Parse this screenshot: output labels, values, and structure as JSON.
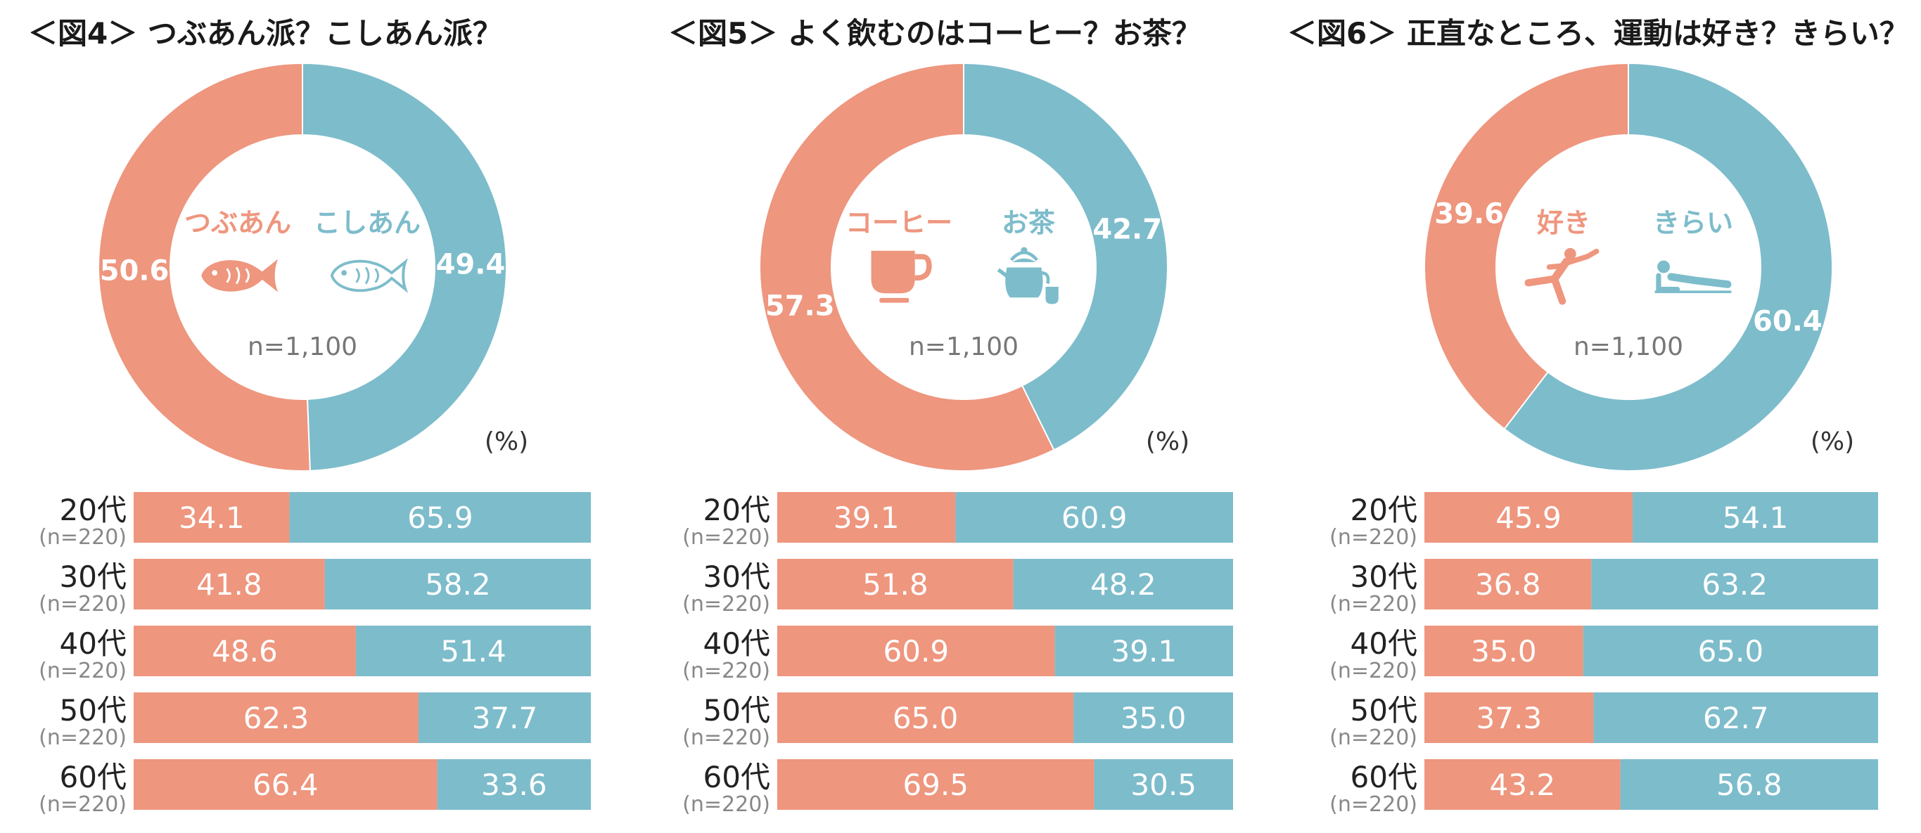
{
  "colors": {
    "left": "#ee967e",
    "right": "#7dbccb"
  },
  "chart_data": [
    {
      "type": "pie",
      "title": "＜図4＞ つぶあん派？こしあん派？",
      "sample": "n=1,100",
      "unit": "(%)",
      "categories": [
        "つぶあん",
        "こしあん"
      ],
      "icons": [
        "taiyaki-filled-icon",
        "taiyaki-outline-icon"
      ],
      "values": [
        50.6,
        49.4
      ],
      "value_labels": [
        "50.6",
        "49.4"
      ],
      "breakdown": {
        "type": "bar",
        "stacked": true,
        "categories": [
          "20代",
          "30代",
          "40代",
          "50代",
          "60代"
        ],
        "sample_labels": [
          "(n=220)",
          "(n=220)",
          "(n=220)",
          "(n=220)",
          "(n=220)"
        ],
        "series": [
          {
            "name": "つぶあん",
            "values": [
              34.1,
              41.8,
              48.6,
              62.3,
              66.4
            ],
            "labels": [
              "34.1",
              "41.8",
              "48.6",
              "62.3",
              "66.4"
            ]
          },
          {
            "name": "こしあん",
            "values": [
              65.9,
              58.2,
              51.4,
              37.7,
              33.6
            ],
            "labels": [
              "65.9",
              "58.2",
              "51.4",
              "37.7",
              "33.6"
            ]
          }
        ]
      }
    },
    {
      "type": "pie",
      "title": "＜図5＞ よく飲むのはコーヒー？お茶？",
      "sample": "n=1,100",
      "unit": "(%)",
      "categories": [
        "コーヒー",
        "お茶"
      ],
      "icons": [
        "coffee-cup-icon",
        "teapot-icon"
      ],
      "values": [
        57.3,
        42.7
      ],
      "value_labels": [
        "57.3",
        "42.7"
      ],
      "breakdown": {
        "type": "bar",
        "stacked": true,
        "categories": [
          "20代",
          "30代",
          "40代",
          "50代",
          "60代"
        ],
        "sample_labels": [
          "(n=220)",
          "(n=220)",
          "(n=220)",
          "(n=220)",
          "(n=220)"
        ],
        "series": [
          {
            "name": "コーヒー",
            "values": [
              39.1,
              51.8,
              60.9,
              65.0,
              69.5
            ],
            "labels": [
              "39.1",
              "51.8",
              "60.9",
              "65.0",
              "69.5"
            ]
          },
          {
            "name": "お茶",
            "values": [
              60.9,
              48.2,
              39.1,
              35.0,
              30.5
            ],
            "labels": [
              "60.9",
              "48.2",
              "39.1",
              "35.0",
              "30.5"
            ]
          }
        ]
      }
    },
    {
      "type": "pie",
      "title": "＜図6＞ 正直なところ、運動は好き？きらい？",
      "sample": "n=1,100",
      "unit": "(%)",
      "categories": [
        "好き",
        "きらい"
      ],
      "icons": [
        "kicking-person-icon",
        "lying-person-icon"
      ],
      "values": [
        39.6,
        60.4
      ],
      "value_labels": [
        "39.6",
        "60.4"
      ],
      "breakdown": {
        "type": "bar",
        "stacked": true,
        "categories": [
          "20代",
          "30代",
          "40代",
          "50代",
          "60代"
        ],
        "sample_labels": [
          "(n=220)",
          "(n=220)",
          "(n=220)",
          "(n=220)",
          "(n=220)"
        ],
        "series": [
          {
            "name": "好き",
            "values": [
              45.9,
              36.8,
              35.0,
              37.3,
              43.2
            ],
            "labels": [
              "45.9",
              "36.8",
              "35.0",
              "37.3",
              "43.2"
            ]
          },
          {
            "name": "きらい",
            "values": [
              54.1,
              63.2,
              65.0,
              62.7,
              56.8
            ],
            "labels": [
              "54.1",
              "63.2",
              "65.0",
              "62.7",
              "56.8"
            ]
          }
        ]
      }
    }
  ]
}
